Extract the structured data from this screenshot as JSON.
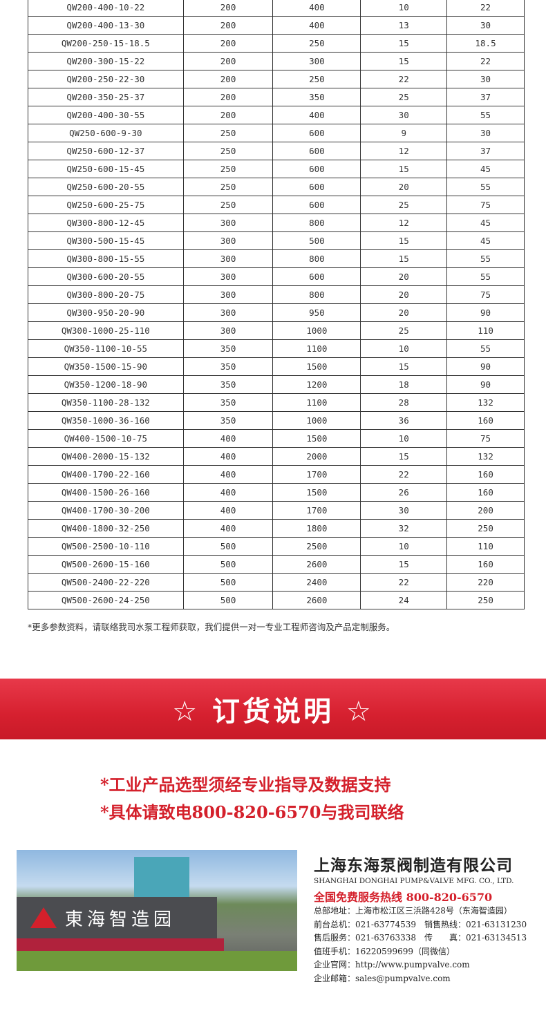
{
  "table": {
    "rows": [
      [
        "QW200-400-10-22",
        "200",
        "400",
        "10",
        "22"
      ],
      [
        "QW200-400-13-30",
        "200",
        "400",
        "13",
        "30"
      ],
      [
        "QW200-250-15-18.5",
        "200",
        "250",
        "15",
        "18.5"
      ],
      [
        "QW200-300-15-22",
        "200",
        "300",
        "15",
        "22"
      ],
      [
        "QW200-250-22-30",
        "200",
        "250",
        "22",
        "30"
      ],
      [
        "QW200-350-25-37",
        "200",
        "350",
        "25",
        "37"
      ],
      [
        "QW200-400-30-55",
        "200",
        "400",
        "30",
        "55"
      ],
      [
        "QW250-600-9-30",
        "250",
        "600",
        "9",
        "30"
      ],
      [
        "QW250-600-12-37",
        "250",
        "600",
        "12",
        "37"
      ],
      [
        "QW250-600-15-45",
        "250",
        "600",
        "15",
        "45"
      ],
      [
        "QW250-600-20-55",
        "250",
        "600",
        "20",
        "55"
      ],
      [
        "QW250-600-25-75",
        "250",
        "600",
        "25",
        "75"
      ],
      [
        "QW300-800-12-45",
        "300",
        "800",
        "12",
        "45"
      ],
      [
        "QW300-500-15-45",
        "300",
        "500",
        "15",
        "45"
      ],
      [
        "QW300-800-15-55",
        "300",
        "800",
        "15",
        "55"
      ],
      [
        "QW300-600-20-55",
        "300",
        "600",
        "20",
        "55"
      ],
      [
        "QW300-800-20-75",
        "300",
        "800",
        "20",
        "75"
      ],
      [
        "QW300-950-20-90",
        "300",
        "950",
        "20",
        "90"
      ],
      [
        "QW300-1000-25-110",
        "300",
        "1000",
        "25",
        "110"
      ],
      [
        "QW350-1100-10-55",
        "350",
        "1100",
        "10",
        "55"
      ],
      [
        "QW350-1500-15-90",
        "350",
        "1500",
        "15",
        "90"
      ],
      [
        "QW350-1200-18-90",
        "350",
        "1200",
        "18",
        "90"
      ],
      [
        "QW350-1100-28-132",
        "350",
        "1100",
        "28",
        "132"
      ],
      [
        "QW350-1000-36-160",
        "350",
        "1000",
        "36",
        "160"
      ],
      [
        "QW400-1500-10-75",
        "400",
        "1500",
        "10",
        "75"
      ],
      [
        "QW400-2000-15-132",
        "400",
        "2000",
        "15",
        "132"
      ],
      [
        "QW400-1700-22-160",
        "400",
        "1700",
        "22",
        "160"
      ],
      [
        "QW400-1500-26-160",
        "400",
        "1500",
        "26",
        "160"
      ],
      [
        "QW400-1700-30-200",
        "400",
        "1700",
        "30",
        "200"
      ],
      [
        "QW400-1800-32-250",
        "400",
        "1800",
        "32",
        "250"
      ],
      [
        "QW500-2500-10-110",
        "500",
        "2500",
        "10",
        "110"
      ],
      [
        "QW500-2600-15-160",
        "500",
        "2600",
        "15",
        "160"
      ],
      [
        "QW500-2400-22-220",
        "500",
        "2400",
        "22",
        "220"
      ],
      [
        "QW500-2600-24-250",
        "500",
        "2600",
        "24",
        "250"
      ]
    ]
  },
  "note": "*更多参数资料，请联络我司水泵工程师获取，我们提供一对一专业工程师咨询及产品定制服务。",
  "banner": {
    "title": "☆ 订货说明 ☆"
  },
  "lines": [
    "*工业产品选型须经专业指导及数据支持",
    "*具体请致电800-820-6570与我司联络"
  ],
  "photo": {
    "sign_text": "東海智造园"
  },
  "company": {
    "name_cn": "上海东海泵阀制造有限公司",
    "name_en": "SHANGHAI DONGHAI PUMP&VALVE MFG. CO., LTD.",
    "hotline": "全国免费服务热线  800-820-6570",
    "details": [
      "总部地址：上海市松江区三浜路428号（东海智造园）",
      "前台总机：021-63774539　销售热线：021-63131230",
      "售后服务：021-63763338　传　　真：021-63134513",
      "值班手机：16220599699（同微信）",
      "企业官网：http://www.pumpvalve.com",
      "企业邮箱：sales@pumpvalve.com"
    ]
  },
  "colors": {
    "accent": "#d4202b"
  }
}
